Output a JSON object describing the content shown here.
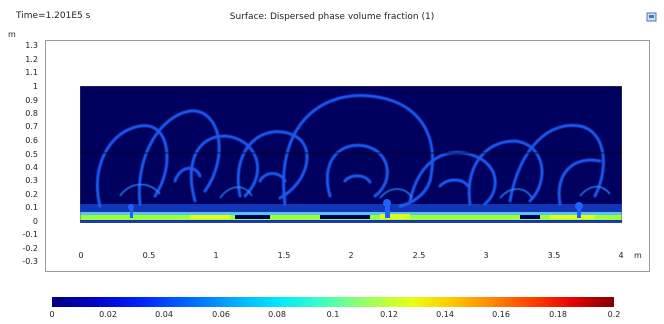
{
  "header": {
    "time_label": "Time=1.201E5 s",
    "title": "Surface: Dispersed phase volume fraction (1)"
  },
  "icons": {
    "corner": "export-icon"
  },
  "axes": {
    "y_unit": "m",
    "x_unit": "m",
    "y_ticks": [
      "1.3",
      "1.2",
      "1.1",
      "1",
      "0.9",
      "0.8",
      "0.7",
      "0.6",
      "0.5",
      "0.4",
      "0.3",
      "0.2",
      "0.1",
      "0",
      "-0.1",
      "-0.2",
      "-0.3"
    ],
    "x_ticks": [
      "0",
      "0.5",
      "1",
      "1.5",
      "2",
      "2.5",
      "3",
      "3.5",
      "4"
    ]
  },
  "colorbar": {
    "ticks": [
      "0",
      "0.02",
      "0.04",
      "0.06",
      "0.08",
      "0.1",
      "0.12",
      "0.14",
      "0.16",
      "0.18",
      "0.2"
    ]
  },
  "colors": {
    "background_field": "#00005f",
    "plume": "#1f63ff",
    "sediment": "#9cff3a"
  }
}
